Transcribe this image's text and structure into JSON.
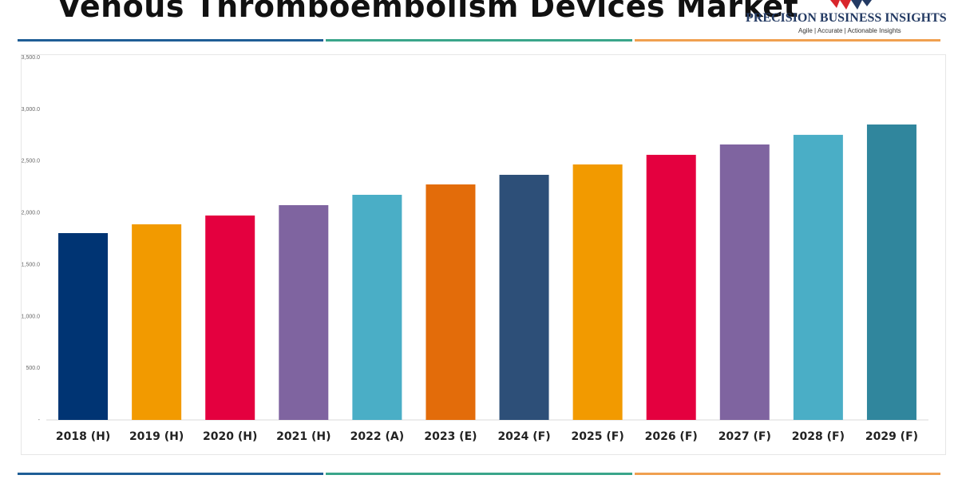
{
  "title": "Venous Thromboembolism Devices Market",
  "logo": {
    "name": "PRECISION BUSINESS INSIGHTS",
    "tagline": "Agile | Accurate | Actionable Insights"
  },
  "colors": {
    "rule_blue": "#1f5e96",
    "rule_green": "#3aa58a",
    "rule_orange": "#f0a050"
  },
  "chart_data": {
    "type": "bar",
    "title": "Venous Thromboembolism Devices Market",
    "categories": [
      "2018 (H)",
      "2019 (H)",
      "2020 (H)",
      "2021 (H)",
      "2022 (A)",
      "2023 (E)",
      "2024 (F)",
      "2025 (F)",
      "2026 (F)",
      "2027 (F)",
      "2028 (F)",
      "2029 (F)"
    ],
    "values": [
      1804,
      1889,
      1974,
      2074,
      2174,
      2274,
      2367,
      2467,
      2560,
      2660,
      2753,
      2853
    ],
    "colors": [
      "#003473",
      "#f29a00",
      "#e4003f",
      "#7f64a0",
      "#4aaec6",
      "#e36c0a",
      "#2d4f78",
      "#f29a00",
      "#e4003f",
      "#7f64a0",
      "#4aaec6",
      "#30869d"
    ],
    "ylim": [
      0,
      3500
    ],
    "yticks": [
      "-",
      "500.0",
      "1,000.0",
      "1,500.0",
      "2,000.0",
      "2,500.0",
      "3,000.0",
      "3,500.0"
    ],
    "grid": false,
    "xlabel": "",
    "ylabel": ""
  }
}
